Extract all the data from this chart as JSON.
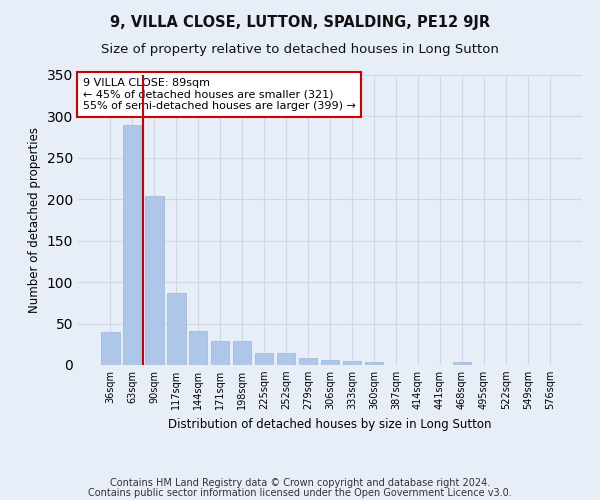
{
  "title": "9, VILLA CLOSE, LUTTON, SPALDING, PE12 9JR",
  "subtitle": "Size of property relative to detached houses in Long Sutton",
  "xlabel": "Distribution of detached houses by size in Long Sutton",
  "ylabel": "Number of detached properties",
  "categories": [
    "36sqm",
    "63sqm",
    "90sqm",
    "117sqm",
    "144sqm",
    "171sqm",
    "198sqm",
    "225sqm",
    "252sqm",
    "279sqm",
    "306sqm",
    "333sqm",
    "360sqm",
    "387sqm",
    "414sqm",
    "441sqm",
    "468sqm",
    "495sqm",
    "522sqm",
    "549sqm",
    "576sqm"
  ],
  "values": [
    40,
    290,
    204,
    87,
    41,
    29,
    29,
    15,
    15,
    8,
    6,
    5,
    4,
    0,
    0,
    0,
    4,
    0,
    0,
    0,
    0
  ],
  "bar_color": "#aec6e8",
  "bar_edge_color": "#9ab8d8",
  "grid_color": "#d0d8e8",
  "background_color": "#e8eef8",
  "vline_color": "#cc0000",
  "vline_x": 1.5,
  "annotation_text": "9 VILLA CLOSE: 89sqm\n← 45% of detached houses are smaller (321)\n55% of semi-detached houses are larger (399) →",
  "annotation_box_color": "white",
  "annotation_box_edge_color": "#cc0000",
  "ylim": [
    0,
    350
  ],
  "yticks": [
    0,
    50,
    100,
    150,
    200,
    250,
    300,
    350
  ],
  "footnote_line1": "Contains HM Land Registry data © Crown copyright and database right 2024.",
  "footnote_line2": "Contains public sector information licensed under the Open Government Licence v3.0.",
  "title_fontsize": 10.5,
  "subtitle_fontsize": 9.5,
  "xlabel_fontsize": 8.5,
  "ylabel_fontsize": 8.5,
  "tick_fontsize": 7,
  "footnote_fontsize": 7,
  "annotation_fontsize": 8
}
